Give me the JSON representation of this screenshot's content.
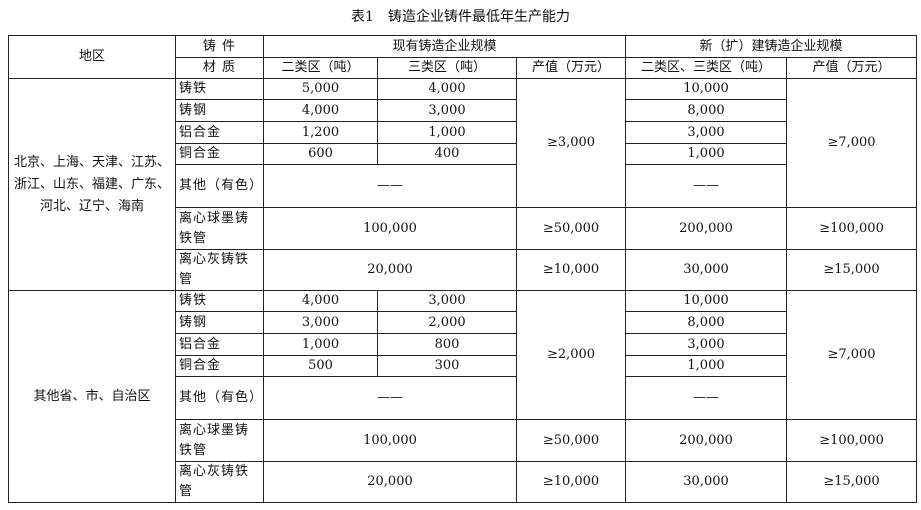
{
  "title": "表1　铸造企业铸件最低年生产能力",
  "header": {
    "region": "地区",
    "material_line1": "铸 件",
    "material_line2": "材 质",
    "existing": "现有铸造企业规模",
    "new": "新（扩）建铸造企业规模",
    "col_class2": "二类区（吨）",
    "col_class3": "三类区（吨）",
    "col_output": "产值（万元）",
    "col_new_class23": "二类区、三类区（吨）",
    "col_new_output": "产值（万元）"
  },
  "groups": [
    {
      "region": "北京、上海、天津、江苏、浙江、山东、福建、广东、河北、辽宁、海南",
      "output_existing": "≥3,000",
      "output_new": "≥7,000",
      "rows": [
        {
          "material": "铸铁",
          "class2": "5,000",
          "class3": "4,000",
          "new": "10,000"
        },
        {
          "material": "铸钢",
          "class2": "4,000",
          "class3": "3,000",
          "new": "8,000"
        },
        {
          "material": "铝合金",
          "class2": "1,200",
          "class3": "1,000",
          "new": "3,000"
        },
        {
          "material": "铜合金",
          "class2": "600",
          "class3": "400",
          "new": "1,000"
        },
        {
          "material": "其他（有色）",
          "merged": "——",
          "new": "——"
        }
      ],
      "pipes": [
        {
          "material": "离心球墨铸铁管",
          "value": "100,000",
          "output": "≥50,000",
          "new": "200,000",
          "new_output": "≥100,000"
        },
        {
          "material": "离心灰铸铁管",
          "value": "20,000",
          "output": "≥10,000",
          "new": "30,000",
          "new_output": "≥15,000"
        }
      ]
    },
    {
      "region": "其他省、市、自治区",
      "output_existing": "≥2,000",
      "output_new": "≥7,000",
      "rows": [
        {
          "material": "铸铁",
          "class2": "4,000",
          "class3": "3,000",
          "new": "10,000"
        },
        {
          "material": "铸钢",
          "class2": "3,000",
          "class3": "2,000",
          "new": "8,000"
        },
        {
          "material": "铝合金",
          "class2": "1,000",
          "class3": "800",
          "new": "3,000"
        },
        {
          "material": "铜合金",
          "class2": "500",
          "class3": "300",
          "new": "1,000"
        },
        {
          "material": "其他（有色）",
          "merged": "——",
          "new": "——"
        }
      ],
      "pipes": [
        {
          "material": "离心球墨铸铁管",
          "value": "100,000",
          "output": "≥50,000",
          "new": "200,000",
          "new_output": "≥100,000"
        },
        {
          "material": "离心灰铸铁管",
          "value": "20,000",
          "output": "≥10,000",
          "new": "30,000",
          "new_output": "≥15,000"
        }
      ]
    }
  ]
}
